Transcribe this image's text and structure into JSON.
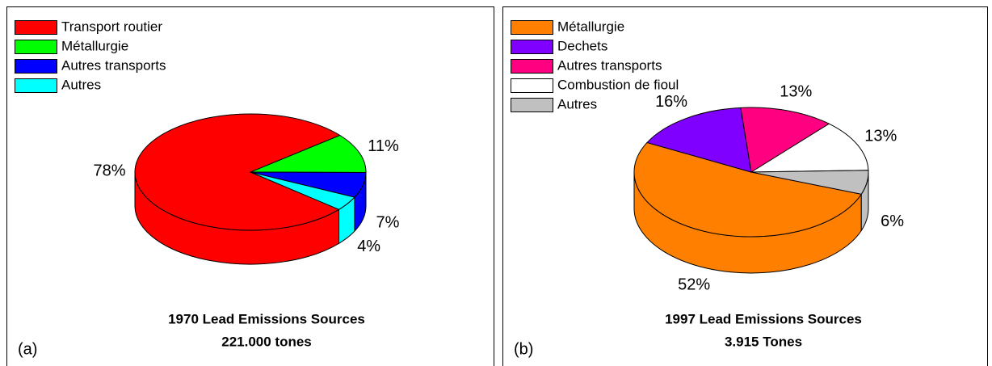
{
  "chart_data": [
    {
      "type": "pie3d",
      "title": "1970 Lead Emissions Sources",
      "subtitle": "221.000 tones",
      "panel_label": "(a)",
      "categories": [
        "Transport routier",
        "Métallurgie",
        "Autres transports",
        "Autres"
      ],
      "values": [
        78,
        11,
        7,
        4
      ],
      "value_labels": [
        "78%",
        "11%",
        "7%",
        "4%"
      ],
      "colors": [
        "#ff0000",
        "#00ff00",
        "#0000ff",
        "#00ffff"
      ]
    },
    {
      "type": "pie3d",
      "title": "1997 Lead Emissions Sources",
      "subtitle": "3.915 Tones",
      "panel_label": "(b)",
      "categories": [
        "Métallurgie",
        "Dechets",
        "Autres transports",
        "Combustion de fioul",
        "Autres"
      ],
      "values": [
        52,
        16,
        13,
        13,
        6
      ],
      "value_labels": [
        "52%",
        "16%",
        "13%",
        "13%",
        "6%"
      ],
      "colors": [
        "#ff8000",
        "#8000ff",
        "#ff0080",
        "#ffffff",
        "#c0c0c0"
      ]
    }
  ]
}
